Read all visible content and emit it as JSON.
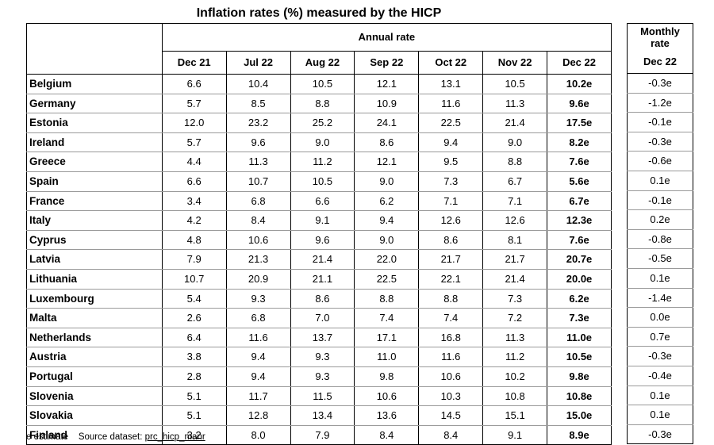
{
  "title": "Inflation rates (%) measured by the HICP",
  "annual_header": "Annual rate",
  "monthly_header_line1": "Monthly",
  "monthly_header_line2": "rate",
  "columns": [
    "Dec 21",
    "Jul 22",
    "Aug 22",
    "Sep 22",
    "Oct 22",
    "Nov 22",
    "Dec 22"
  ],
  "monthly_column": "Dec 22",
  "rows": [
    {
      "country": "Belgium",
      "values": [
        "6.6",
        "10.4",
        "10.5",
        "12.1",
        "13.1",
        "10.5",
        "10.2e"
      ],
      "monthly": "-0.3e"
    },
    {
      "country": "Germany",
      "values": [
        "5.7",
        "8.5",
        "8.8",
        "10.9",
        "11.6",
        "11.3",
        "9.6e"
      ],
      "monthly": "-1.2e"
    },
    {
      "country": "Estonia",
      "values": [
        "12.0",
        "23.2",
        "25.2",
        "24.1",
        "22.5",
        "21.4",
        "17.5e"
      ],
      "monthly": "-0.1e"
    },
    {
      "country": "Ireland",
      "values": [
        "5.7",
        "9.6",
        "9.0",
        "8.6",
        "9.4",
        "9.0",
        "8.2e"
      ],
      "monthly": "-0.3e"
    },
    {
      "country": "Greece",
      "values": [
        "4.4",
        "11.3",
        "11.2",
        "12.1",
        "9.5",
        "8.8",
        "7.6e"
      ],
      "monthly": "-0.6e"
    },
    {
      "country": "Spain",
      "values": [
        "6.6",
        "10.7",
        "10.5",
        "9.0",
        "7.3",
        "6.7",
        "5.6e"
      ],
      "monthly": "0.1e"
    },
    {
      "country": "France",
      "values": [
        "3.4",
        "6.8",
        "6.6",
        "6.2",
        "7.1",
        "7.1",
        "6.7e"
      ],
      "monthly": "-0.1e"
    },
    {
      "country": "Italy",
      "values": [
        "4.2",
        "8.4",
        "9.1",
        "9.4",
        "12.6",
        "12.6",
        "12.3e"
      ],
      "monthly": "0.2e"
    },
    {
      "country": "Cyprus",
      "values": [
        "4.8",
        "10.6",
        "9.6",
        "9.0",
        "8.6",
        "8.1",
        "7.6e"
      ],
      "monthly": "-0.8e"
    },
    {
      "country": "Latvia",
      "values": [
        "7.9",
        "21.3",
        "21.4",
        "22.0",
        "21.7",
        "21.7",
        "20.7e"
      ],
      "monthly": "-0.5e"
    },
    {
      "country": "Lithuania",
      "values": [
        "10.7",
        "20.9",
        "21.1",
        "22.5",
        "22.1",
        "21.4",
        "20.0e"
      ],
      "monthly": "0.1e"
    },
    {
      "country": "Luxembourg",
      "values": [
        "5.4",
        "9.3",
        "8.6",
        "8.8",
        "8.8",
        "7.3",
        "6.2e"
      ],
      "monthly": "-1.4e"
    },
    {
      "country": "Malta",
      "values": [
        "2.6",
        "6.8",
        "7.0",
        "7.4",
        "7.4",
        "7.2",
        "7.3e"
      ],
      "monthly": "0.0e"
    },
    {
      "country": "Netherlands",
      "values": [
        "6.4",
        "11.6",
        "13.7",
        "17.1",
        "16.8",
        "11.3",
        "11.0e"
      ],
      "monthly": "0.7e"
    },
    {
      "country": "Austria",
      "values": [
        "3.8",
        "9.4",
        "9.3",
        "11.0",
        "11.6",
        "11.2",
        "10.5e"
      ],
      "monthly": "-0.3e"
    },
    {
      "country": "Portugal",
      "values": [
        "2.8",
        "9.4",
        "9.3",
        "9.8",
        "10.6",
        "10.2",
        "9.8e"
      ],
      "monthly": "-0.4e"
    },
    {
      "country": "Slovenia",
      "values": [
        "5.1",
        "11.7",
        "11.5",
        "10.6",
        "10.3",
        "10.8",
        "10.8e"
      ],
      "monthly": "0.1e"
    },
    {
      "country": "Slovakia",
      "values": [
        "5.1",
        "12.8",
        "13.4",
        "13.6",
        "14.5",
        "15.1",
        "15.0e"
      ],
      "monthly": "0.1e"
    },
    {
      "country": "Finland",
      "values": [
        "3.2",
        "8.0",
        "7.9",
        "8.4",
        "8.4",
        "9.1",
        "8.9e"
      ],
      "monthly": "-0.3e"
    }
  ],
  "footnote": {
    "note": "e estimate",
    "source_label": "Source dataset:",
    "source_link": "prc_hicp_manr"
  }
}
